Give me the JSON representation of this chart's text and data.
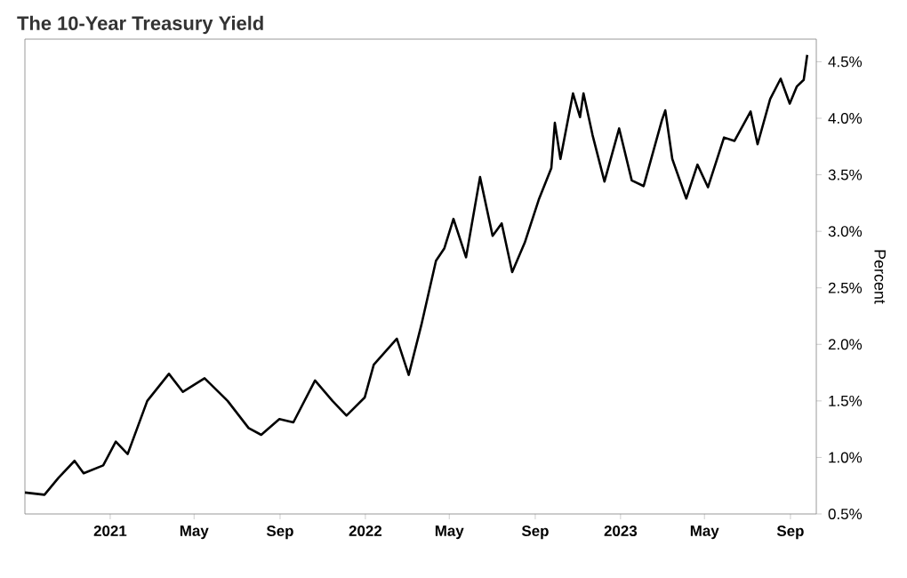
{
  "chart_data": {
    "type": "line",
    "title": "The 10-Year Treasury Yield",
    "ylabel": "Percent",
    "x": [
      "2020-09-01",
      "2020-09-29",
      "2020-10-19",
      "2020-11-11",
      "2020-11-24",
      "2020-12-22",
      "2021-01-09",
      "2021-01-26",
      "2021-02-23",
      "2021-03-26",
      "2021-04-15",
      "2021-05-16",
      "2021-06-18",
      "2021-07-18",
      "2021-08-05",
      "2021-08-31",
      "2021-09-20",
      "2021-10-21",
      "2021-11-15",
      "2021-12-05",
      "2021-12-31",
      "2022-01-13",
      "2022-02-15",
      "2022-03-04",
      "2022-03-22",
      "2022-04-12",
      "2022-04-24",
      "2022-05-07",
      "2022-05-25",
      "2022-06-14",
      "2022-07-02",
      "2022-07-15",
      "2022-07-30",
      "2022-08-17",
      "2022-09-06",
      "2022-09-24",
      "2022-09-29",
      "2022-10-07",
      "2022-10-25",
      "2022-11-04",
      "2022-11-09",
      "2022-11-22",
      "2022-12-09",
      "2022-12-30",
      "2023-01-17",
      "2023-02-03",
      "2023-03-01",
      "2023-03-06",
      "2023-03-16",
      "2023-04-05",
      "2023-04-21",
      "2023-05-06",
      "2023-05-29",
      "2023-06-13",
      "2023-07-06",
      "2023-07-16",
      "2023-08-03",
      "2023-08-18",
      "2023-08-31",
      "2023-09-10",
      "2023-09-20",
      "2023-09-25"
    ],
    "values": [
      0.69,
      0.67,
      0.82,
      0.97,
      0.86,
      0.93,
      1.14,
      1.03,
      1.5,
      1.74,
      1.58,
      1.7,
      1.5,
      1.26,
      1.2,
      1.34,
      1.31,
      1.68,
      1.5,
      1.37,
      1.53,
      1.82,
      2.05,
      1.73,
      2.17,
      2.74,
      2.85,
      3.11,
      2.77,
      3.48,
      2.96,
      3.07,
      2.64,
      2.9,
      3.28,
      3.56,
      3.96,
      3.64,
      4.22,
      4.01,
      4.22,
      3.85,
      3.44,
      3.91,
      3.45,
      3.4,
      3.98,
      4.07,
      3.64,
      3.29,
      3.59,
      3.39,
      3.83,
      3.8,
      4.06,
      3.77,
      4.17,
      4.35,
      4.13,
      4.28,
      4.34,
      4.56
    ],
    "color": "#000000",
    "line_style": "solid",
    "marker": "none",
    "xlim": [
      "2020-09-01",
      "2023-10-08"
    ],
    "xticks": [
      {
        "value": "2021-01-01",
        "label": "2021"
      },
      {
        "value": "2021-05-01",
        "label": "May"
      },
      {
        "value": "2021-09-01",
        "label": "Sep"
      },
      {
        "value": "2022-01-01",
        "label": "2022"
      },
      {
        "value": "2022-05-01",
        "label": "May"
      },
      {
        "value": "2022-09-01",
        "label": "Sep"
      },
      {
        "value": "2023-01-01",
        "label": "2023"
      },
      {
        "value": "2023-05-01",
        "label": "May"
      },
      {
        "value": "2023-09-01",
        "label": "Sep"
      }
    ],
    "ylim": [
      0.5,
      4.7
    ],
    "yticks": [
      {
        "value": 0.5,
        "label": "0.5%"
      },
      {
        "value": 1.0,
        "label": "1.0%"
      },
      {
        "value": 1.5,
        "label": "1.5%"
      },
      {
        "value": 2.0,
        "label": "2.0%"
      },
      {
        "value": 2.5,
        "label": "2.5%"
      },
      {
        "value": 3.0,
        "label": "3.0%"
      },
      {
        "value": 3.5,
        "label": "3.5%"
      },
      {
        "value": 4.0,
        "label": "4.0%"
      },
      {
        "value": 4.5,
        "label": "4.5%"
      }
    ]
  }
}
